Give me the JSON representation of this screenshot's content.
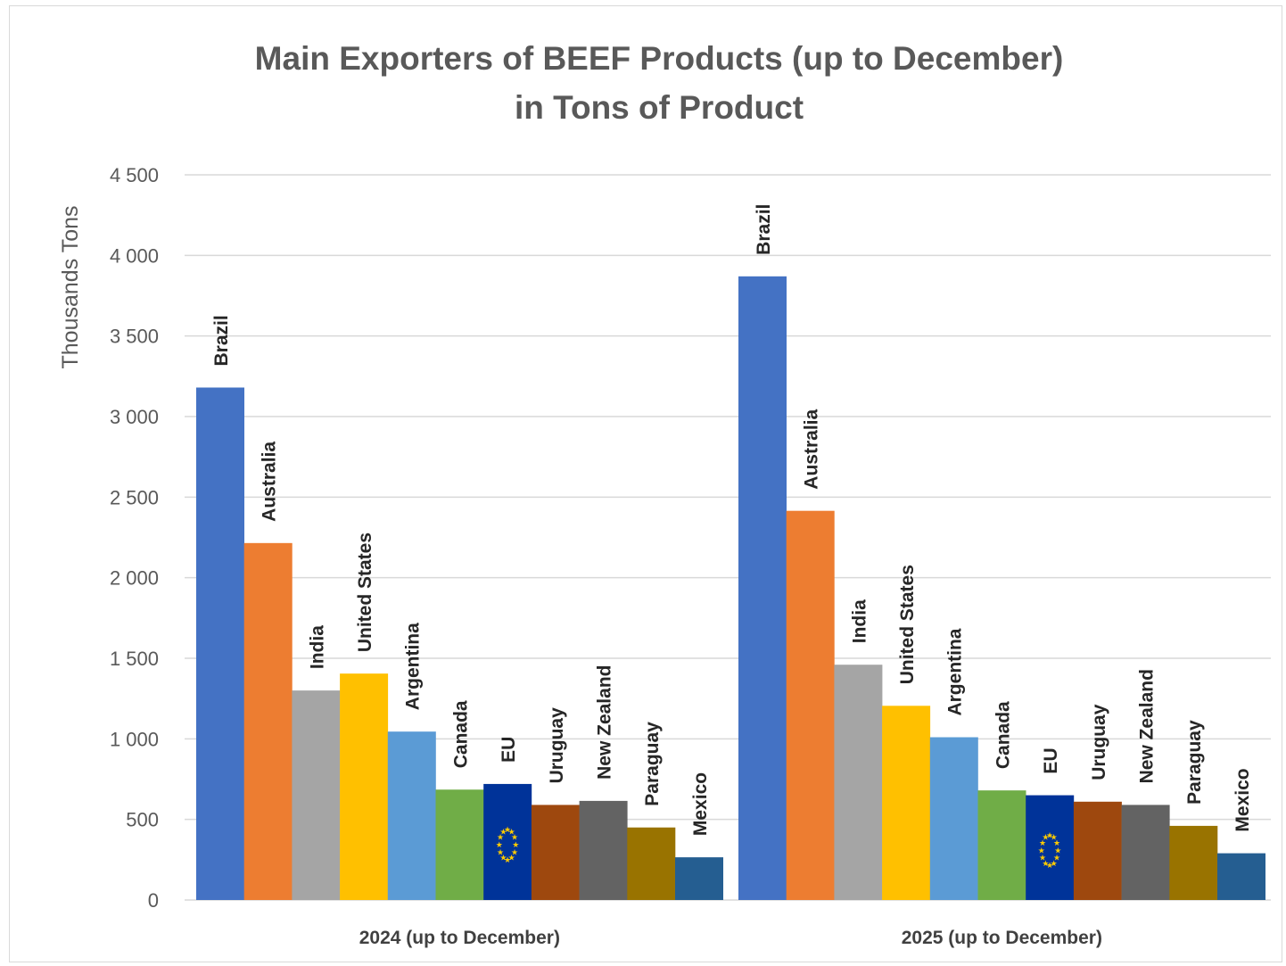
{
  "chart_data": {
    "type": "bar",
    "title_line1": "Main Exporters of BEEF Products (up to December)",
    "title_line2": "in Tons of Product",
    "ylabel": "Thousands Tons",
    "ylim": [
      0,
      4500
    ],
    "yticks": [
      0,
      500,
      1000,
      1500,
      2000,
      2500,
      3000,
      3500,
      4000,
      4500
    ],
    "ytick_labels": [
      "0",
      "500",
      "1 000",
      "1 500",
      "2 000",
      "2 500",
      "3 000",
      "3 500",
      "4 000",
      "4 500"
    ],
    "grid": true,
    "legend": "none",
    "categories": [
      "2024 (up to December)",
      "2025 (up to December)"
    ],
    "series": [
      {
        "name": "Brazil",
        "color": "#4472c4",
        "values": [
          3180,
          3870
        ]
      },
      {
        "name": "Australia",
        "color": "#ed7d31",
        "values": [
          2215,
          2415
        ]
      },
      {
        "name": "India",
        "color": "#a5a5a5",
        "values": [
          1300,
          1460
        ]
      },
      {
        "name": "United States",
        "color": "#ffc000",
        "values": [
          1405,
          1205
        ]
      },
      {
        "name": "Argentina",
        "color": "#5b9bd5",
        "values": [
          1045,
          1010
        ]
      },
      {
        "name": "Canada",
        "color": "#70ad47",
        "values": [
          685,
          680
        ]
      },
      {
        "name": "EU",
        "color": "#003399",
        "values": [
          720,
          650
        ]
      },
      {
        "name": "Uruguay",
        "color": "#9e480e",
        "values": [
          590,
          610
        ]
      },
      {
        "name": "New Zealand",
        "color": "#636363",
        "values": [
          615,
          590
        ]
      },
      {
        "name": "Paraguay",
        "color": "#997300",
        "values": [
          450,
          460
        ]
      },
      {
        "name": "Mexico",
        "color": "#255e91",
        "values": [
          265,
          290
        ]
      }
    ]
  }
}
